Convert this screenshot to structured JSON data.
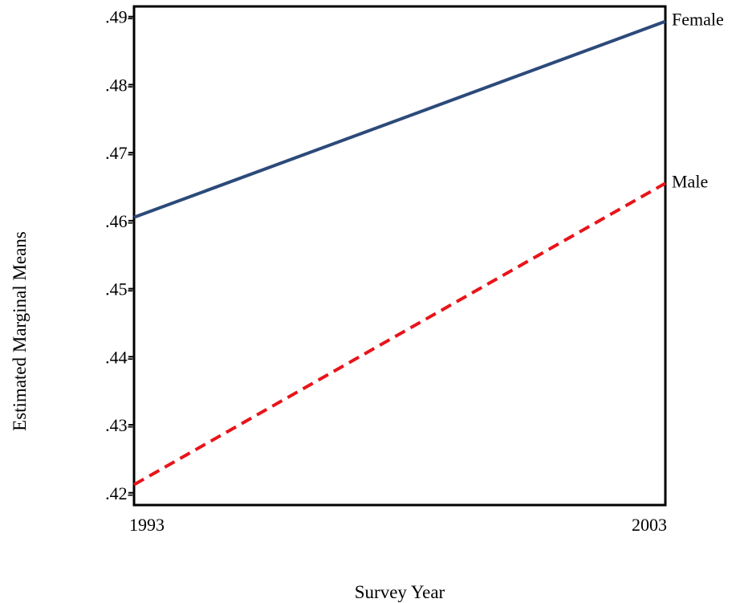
{
  "chart_data": {
    "type": "line",
    "title": "",
    "xlabel": "Survey Year",
    "ylabel": "Estimated Marginal  Means",
    "x": [
      1993,
      2003
    ],
    "x_tick_labels": [
      "1993",
      "2003"
    ],
    "xlim": [
      1993,
      2003
    ],
    "ylim": [
      0.4182,
      0.4915
    ],
    "y_ticks": [
      0.42,
      0.43,
      0.44,
      0.45,
      0.46,
      0.47,
      0.48,
      0.49
    ],
    "y_tick_labels": [
      ".42-",
      ".43-",
      ".44-",
      ".45-",
      ".46-",
      ".47-",
      ".48-",
      ".49-"
    ],
    "grid": false,
    "legend": "none (series labelled at right end of lines)",
    "series": [
      {
        "name": "Female",
        "values": [
          0.4605,
          0.4893
        ],
        "color": "#2c4a7a",
        "style": "solid"
      },
      {
        "name": "Male",
        "values": [
          0.4212,
          0.4655
        ],
        "color": "#e8141a",
        "style": "dashed"
      }
    ]
  }
}
